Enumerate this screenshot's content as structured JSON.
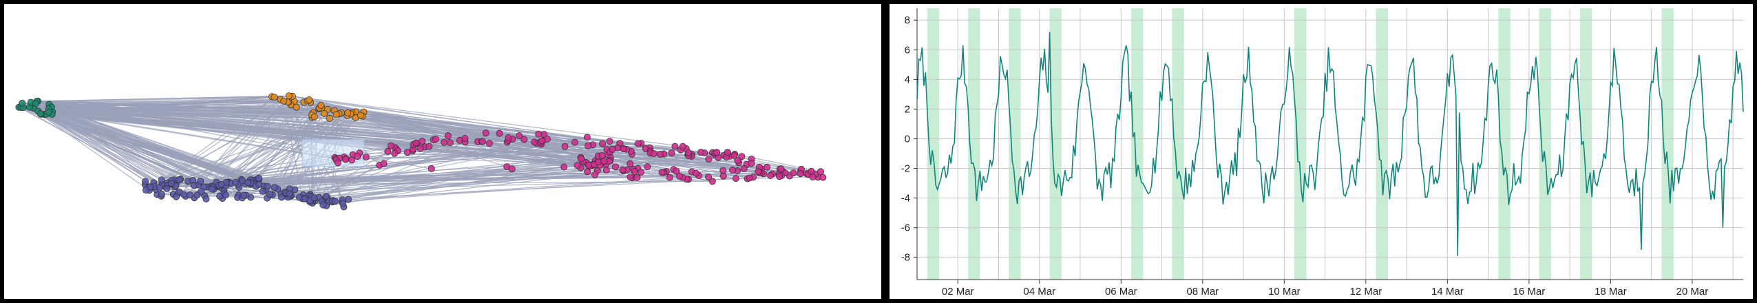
{
  "palette": {
    "cluster_teal": "#1b8a6e",
    "cluster_orange": "#e08a1e",
    "cluster_purple": "#5a5aa8",
    "cluster_magenta": "#d02e8f",
    "edge": "#9aa0b8",
    "selection_box": "#cfe2f7",
    "line": "#12847c",
    "highlight_band": "#c8ecd4",
    "grid": "#c8c8c8"
  },
  "chart_data": [
    {
      "type": "scatter",
      "title": "",
      "xlabel": "",
      "ylabel": "",
      "clusters": [
        {
          "color_key": "cluster_teal",
          "center": [
            0.04,
            0.78
          ],
          "count": 22
        },
        {
          "color_key": "cluster_orange",
          "center": [
            0.36,
            0.82
          ],
          "count": 40
        },
        {
          "color_key": "cluster_purple",
          "center": [
            0.24,
            0.3
          ],
          "count": 150
        },
        {
          "color_key": "cluster_magenta",
          "center": [
            0.75,
            0.48
          ],
          "count": 220
        }
      ],
      "edges": "dense connections between all clusters",
      "selection_box": {
        "x": [
          0.34,
          0.41
        ],
        "y": [
          0.45,
          0.54
        ]
      }
    },
    {
      "type": "line",
      "title": "",
      "xlabel": "",
      "ylabel": "",
      "x_start": "2024-03-01 00:00",
      "x_end": "2024-03-21 06:00",
      "x_ticks": [
        "02 Mar",
        "04 Mar",
        "06 Mar",
        "08 Mar",
        "10 Mar",
        "12 Mar",
        "14 Mar",
        "16 Mar",
        "18 Mar",
        "20 Mar"
      ],
      "y_ticks": [
        8,
        6,
        4,
        2,
        0,
        -2,
        -4,
        -6,
        -8
      ],
      "ylim": [
        -9.5,
        8.8
      ],
      "grid": true,
      "period_hours": 24,
      "amplitude": 4,
      "highlight_days": [
        "2024-03-01 06:00",
        "2024-03-02 06:00",
        "2024-03-03 06:00",
        "2024-03-04 06:00",
        "2024-03-06 06:00",
        "2024-03-07 06:00",
        "2024-03-10 06:00",
        "2024-03-12 06:00",
        "2024-03-15 06:00",
        "2024-03-16 06:00",
        "2024-03-17 06:00",
        "2024-03-19 06:00"
      ],
      "highlight_width_hours": 7,
      "peaks": [
        {
          "x": "2024-03-04 06:00",
          "y": 7.2
        },
        {
          "x": "2024-03-14 06:00",
          "y": -7.9
        },
        {
          "x": "2024-03-18 18:00",
          "y": -7.5
        },
        {
          "x": "2024-03-20 18:00",
          "y": -6.0
        }
      ]
    }
  ]
}
